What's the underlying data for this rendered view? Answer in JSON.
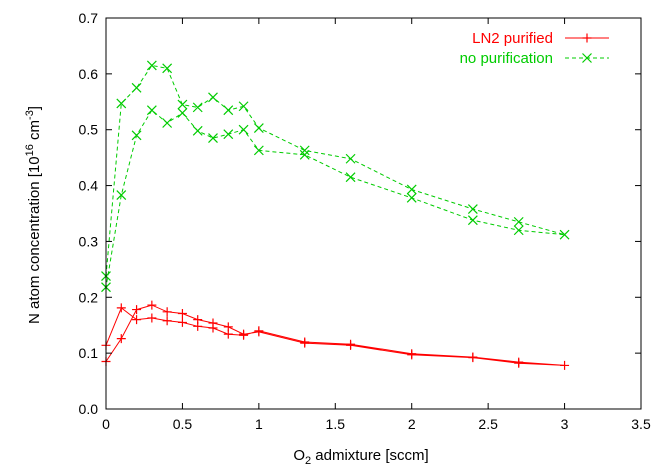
{
  "chart_data": {
    "type": "line",
    "xlabel": "O2 admixture [sccm]",
    "ylabel": "N atom concentration [10^16 cm^-3]",
    "xlim": [
      0,
      3.5
    ],
    "ylim": [
      0,
      0.7
    ],
    "xticks": [
      "0",
      "0.5",
      "1",
      "1.5",
      "2",
      "2.5",
      "3",
      "3.5"
    ],
    "yticks": [
      "0.0",
      "0.1",
      "0.2",
      "0.3",
      "0.4",
      "0.5",
      "0.6",
      "0.7"
    ],
    "legend_position": "top-right",
    "grid": false,
    "series": [
      {
        "name": "LN2 purified",
        "color": "#ff0000",
        "dash": "solid",
        "marker": "plus",
        "x": [
          0,
          0.1,
          0.2,
          0.3,
          0.4,
          0.5,
          0.6,
          0.7,
          0.8,
          0.9,
          1.0,
          1.3,
          1.6,
          2.0,
          2.4,
          2.7,
          3.0,
          2.7,
          2.4,
          2.0,
          1.6,
          1.3,
          1.0,
          0.9,
          0.8,
          0.7,
          0.6,
          0.5,
          0.4,
          0.3,
          0.2,
          0.1,
          0
        ],
        "y": [
          0.085,
          0.126,
          0.178,
          0.186,
          0.174,
          0.171,
          0.16,
          0.154,
          0.147,
          0.134,
          0.138,
          0.118,
          0.114,
          0.097,
          0.092,
          0.082,
          0.078,
          0.084,
          0.093,
          0.099,
          0.116,
          0.12,
          0.14,
          0.132,
          0.134,
          0.145,
          0.148,
          0.155,
          0.158,
          0.163,
          0.16,
          0.181,
          0.114
        ]
      },
      {
        "name": "no purification",
        "color": "#00cc00",
        "dash": "dashed",
        "marker": "cross",
        "x": [
          0,
          0.1,
          0.2,
          0.3,
          0.4,
          0.5,
          0.6,
          0.7,
          0.8,
          0.9,
          1.0,
          1.3,
          1.6,
          2.0,
          2.4,
          2.7,
          3.0,
          2.7,
          2.4,
          2.0,
          1.6,
          1.3,
          1.0,
          0.9,
          0.8,
          0.7,
          0.6,
          0.5,
          0.4,
          0.3,
          0.2,
          0.1,
          0
        ],
        "y": [
          0.238,
          0.547,
          0.575,
          0.615,
          0.61,
          0.545,
          0.54,
          0.558,
          0.535,
          0.542,
          0.503,
          0.463,
          0.448,
          0.393,
          0.358,
          0.335,
          0.312,
          0.32,
          0.338,
          0.378,
          0.415,
          0.455,
          0.463,
          0.5,
          0.492,
          0.485,
          0.498,
          0.53,
          0.512,
          0.535,
          0.49,
          0.383,
          0.218
        ]
      }
    ]
  }
}
